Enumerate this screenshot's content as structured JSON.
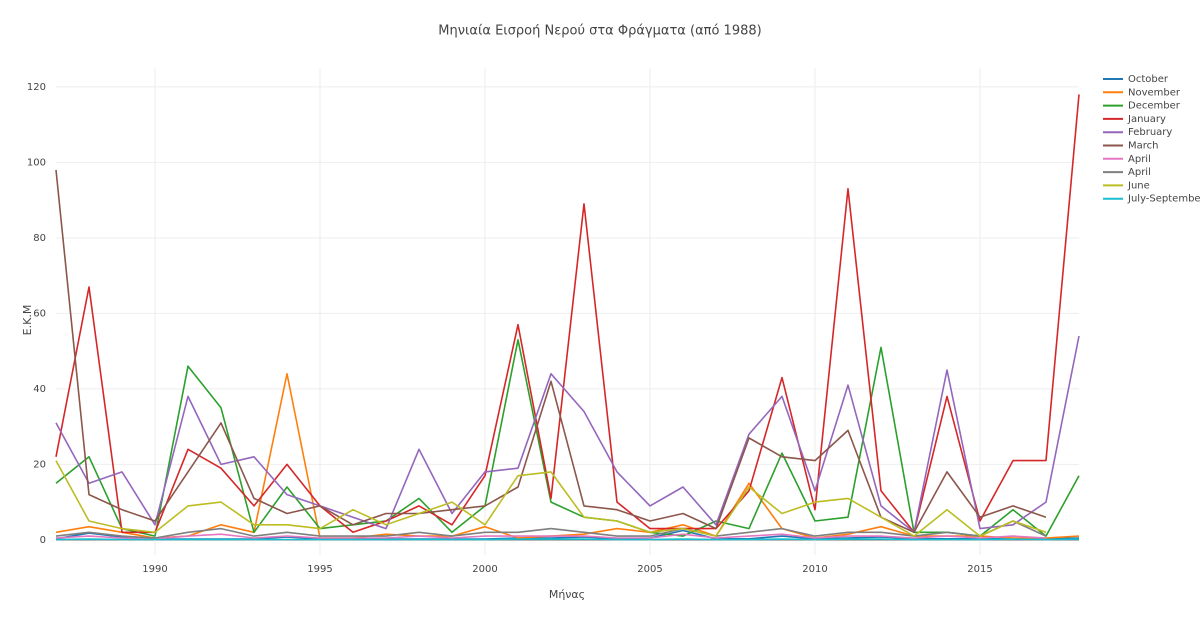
{
  "chart_data": {
    "type": "line",
    "title": "Μηνιαία Εισροή Νερού στα Φράγματα (από 1988)",
    "x_label": "Μήνας",
    "y_label": "Ε.Κ.Μ",
    "x": [
      1987,
      1988,
      1989,
      1990,
      1991,
      1992,
      1993,
      1994,
      1995,
      1996,
      1997,
      1998,
      1999,
      2000,
      2001,
      2002,
      2003,
      2004,
      2005,
      2006,
      2007,
      2008,
      2009,
      2010,
      2011,
      2012,
      2013,
      2014,
      2015,
      2016,
      2017,
      2018
    ],
    "xlim": [
      1987,
      2018
    ],
    "xticks": [
      1990,
      1995,
      2000,
      2005,
      2010,
      2015
    ],
    "ylim": [
      -4,
      125
    ],
    "yticks": [
      0,
      20,
      40,
      60,
      80,
      100,
      120
    ],
    "grid": true,
    "legend": "right",
    "series": [
      {
        "name": "October",
        "color": "#1f77b4",
        "values": [
          0.3,
          1.8,
          0.8,
          0.2,
          0.2,
          0.2,
          0.2,
          0.8,
          0.2,
          0.2,
          0.2,
          0.2,
          0.2,
          0.2,
          0.5,
          0.5,
          0.8,
          0.3,
          0.5,
          2.5,
          0.3,
          0.3,
          1,
          0.3,
          0.5,
          0.8,
          0.3,
          0.3,
          0.3,
          0.3,
          0.3,
          0.5
        ]
      },
      {
        "name": "November",
        "color": "#ff7f0e",
        "values": [
          2,
          3.5,
          2,
          0.5,
          1,
          4,
          2,
          44,
          0.5,
          0.5,
          1.5,
          1,
          1,
          3.5,
          0.5,
          1,
          1.5,
          3,
          2,
          4,
          1,
          15,
          3,
          0.5,
          1.5,
          3.5,
          1,
          1,
          1,
          0.5,
          0.5,
          1
        ]
      },
      {
        "name": "December",
        "color": "#2ca02c",
        "values": [
          15,
          22,
          3,
          1,
          46,
          35,
          2,
          14,
          3,
          4,
          5,
          11,
          2,
          9,
          53,
          10,
          6,
          5,
          2,
          1,
          5,
          3,
          23,
          5,
          6,
          51,
          2,
          2,
          1,
          8,
          1,
          17
        ]
      },
      {
        "name": "January",
        "color": "#d62728",
        "values": [
          22,
          67,
          2,
          2,
          24,
          19,
          9,
          20,
          9,
          2,
          5,
          9,
          4,
          17,
          57,
          11,
          89,
          10,
          3,
          3,
          3,
          13,
          43,
          8,
          93,
          13,
          2,
          38,
          5,
          21,
          21,
          118
        ]
      },
      {
        "name": "February",
        "color": "#9467bd",
        "values": [
          31,
          15,
          18,
          4,
          38,
          20,
          22,
          12,
          9,
          6,
          3,
          24,
          7,
          18,
          19,
          44,
          34,
          18,
          9,
          14,
          4,
          28,
          38,
          13,
          41,
          9,
          2,
          45,
          3,
          4,
          10,
          54
        ]
      },
      {
        "name": "March",
        "color": "#8c564b",
        "values": [
          98,
          12,
          8,
          5,
          18,
          31,
          11,
          7,
          9,
          4,
          7,
          7,
          8,
          9,
          14,
          42,
          9,
          8,
          5,
          7,
          3,
          27,
          22,
          21,
          29,
          6,
          2,
          18,
          6,
          9,
          6,
          null
        ]
      },
      {
        "name": "April",
        "color": "#e377c2",
        "values": [
          0.5,
          1,
          0.5,
          0.3,
          1,
          1.5,
          0.5,
          1,
          0.5,
          0.5,
          0.5,
          1,
          0.5,
          1,
          1,
          1,
          1,
          0.5,
          0.5,
          1.5,
          0.5,
          1,
          1.5,
          0.5,
          1,
          1,
          0.5,
          1,
          0.5,
          1,
          0.5,
          null
        ]
      },
      {
        "name": "April",
        "color": "#7f7f7f",
        "values": [
          1,
          2,
          1,
          0.5,
          2,
          3,
          1,
          2,
          1,
          1,
          1,
          2,
          1,
          2,
          2,
          3,
          2,
          1,
          1,
          3,
          1,
          2,
          3,
          1,
          2,
          2,
          1,
          2,
          1,
          5,
          1,
          null
        ]
      },
      {
        "name": "June",
        "color": "#bcbd22",
        "values": [
          21,
          5,
          3,
          2,
          9,
          10,
          4,
          4,
          3,
          8,
          4,
          7,
          10,
          4,
          17,
          18,
          6,
          5,
          2,
          3,
          1,
          14,
          7,
          10,
          11,
          6,
          1,
          8,
          1,
          5,
          2,
          null
        ]
      },
      {
        "name": "July-September",
        "color": "#17becf",
        "values": [
          0.1,
          0.2,
          0.1,
          0.1,
          0.1,
          0.1,
          0.1,
          0.1,
          0.1,
          0.1,
          0.1,
          0.1,
          0.1,
          0.1,
          0.2,
          0.2,
          0.2,
          0.1,
          0.1,
          0.2,
          0.1,
          0.1,
          0.2,
          0.1,
          0.2,
          0.2,
          0.1,
          0.1,
          0.1,
          0.2,
          0.1,
          0.2
        ]
      }
    ]
  }
}
